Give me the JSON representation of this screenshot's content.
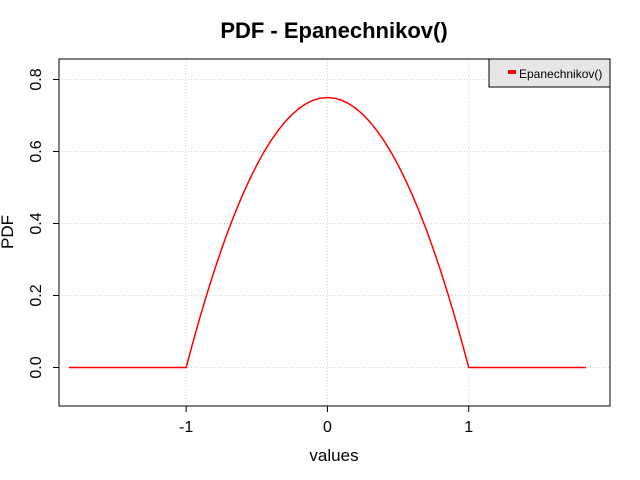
{
  "chart_data": {
    "type": "line",
    "title": "PDF - Epanechnikov()",
    "xlabel": "values",
    "ylabel": "PDF",
    "xlim": [
      -1.9,
      2.0
    ],
    "ylim": [
      -0.107,
      0.857
    ],
    "x_ticks": [
      -1,
      0,
      1
    ],
    "x_tick_labels": [
      "-1",
      "0",
      "1"
    ],
    "y_ticks": [
      0.0,
      0.2,
      0.4,
      0.6,
      0.8
    ],
    "y_tick_labels": [
      "0.0",
      "0.2",
      "0.4",
      "0.6",
      "0.8"
    ],
    "grid": true,
    "legend_position": "top-right",
    "series": [
      {
        "name": "Epanechnikov()",
        "color": "#ff0000",
        "x": [
          -1.83,
          -1.0,
          -0.95,
          -0.9,
          -0.85,
          -0.8,
          -0.75,
          -0.7,
          -0.65,
          -0.6,
          -0.55,
          -0.5,
          -0.45,
          -0.4,
          -0.35,
          -0.3,
          -0.25,
          -0.2,
          -0.15,
          -0.1,
          -0.05,
          0.0,
          0.05,
          0.1,
          0.15,
          0.2,
          0.25,
          0.3,
          0.35,
          0.4,
          0.45,
          0.5,
          0.55,
          0.6,
          0.65,
          0.7,
          0.75,
          0.8,
          0.85,
          0.9,
          0.95,
          1.0,
          1.83
        ],
        "y": [
          0.0,
          0.0,
          0.0731,
          0.1425,
          0.2081,
          0.27,
          0.3281,
          0.3825,
          0.4331,
          0.48,
          0.5231,
          0.5625,
          0.5981,
          0.63,
          0.6581,
          0.6825,
          0.7031,
          0.72,
          0.7331,
          0.7425,
          0.7481,
          0.75,
          0.7481,
          0.7425,
          0.7331,
          0.72,
          0.7031,
          0.6825,
          0.6581,
          0.63,
          0.5981,
          0.5625,
          0.5231,
          0.48,
          0.4331,
          0.3825,
          0.3281,
          0.27,
          0.2081,
          0.1425,
          0.0731,
          0.0,
          0.0
        ]
      }
    ]
  }
}
